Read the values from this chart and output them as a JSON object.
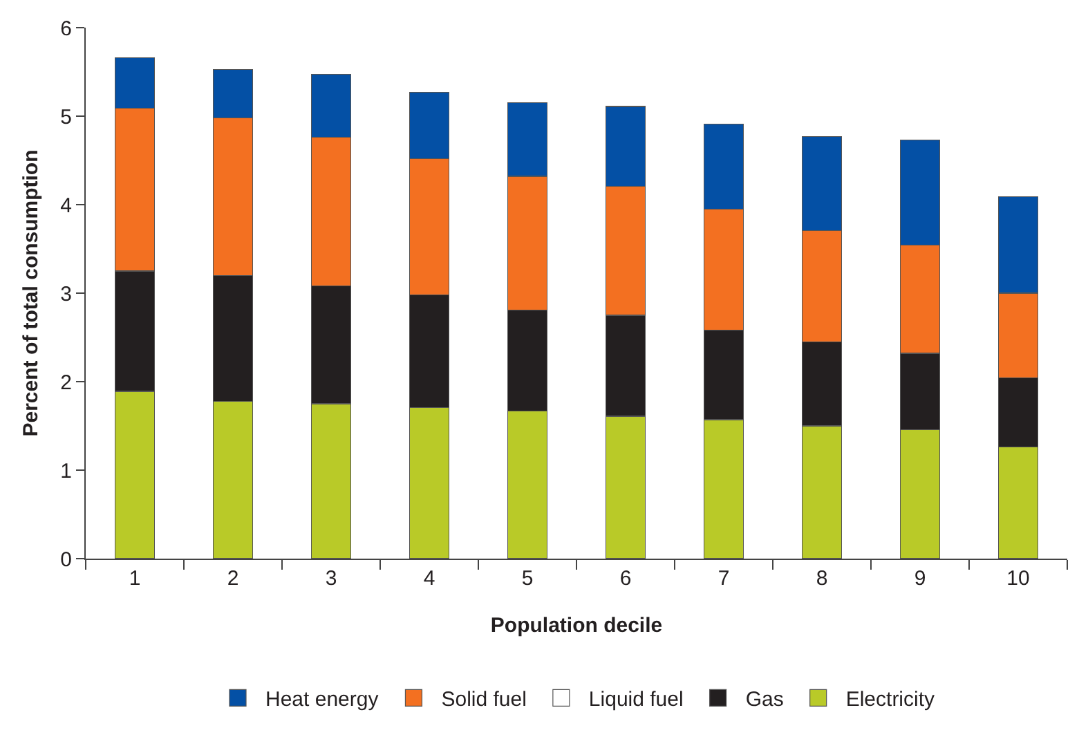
{
  "chart_data": {
    "type": "bar",
    "stacked": true,
    "xlabel": "Population decile",
    "ylabel": "Percent of total consumption",
    "categories": [
      "1",
      "2",
      "3",
      "4",
      "5",
      "6",
      "7",
      "8",
      "9",
      "10"
    ],
    "series": [
      {
        "name": "Electricity",
        "color": "#b9ca28",
        "values": [
          1.89,
          1.78,
          1.75,
          1.71,
          1.67,
          1.61,
          1.57,
          1.5,
          1.46,
          1.26
        ]
      },
      {
        "name": "Gas",
        "color": "#231f20",
        "values": [
          1.36,
          1.42,
          1.33,
          1.27,
          1.14,
          1.14,
          1.01,
          0.95,
          0.86,
          0.78
        ]
      },
      {
        "name": "Liquid fuel",
        "color": "#ffffff",
        "values": [
          0,
          0,
          0,
          0,
          0,
          0,
          0,
          0,
          0,
          0
        ]
      },
      {
        "name": "Solid fuel",
        "color": "#f37021",
        "values": [
          1.84,
          1.78,
          1.68,
          1.54,
          1.51,
          1.46,
          1.37,
          1.26,
          1.22,
          0.96
        ]
      },
      {
        "name": "Heat energy",
        "color": "#0450a5",
        "values": [
          0.57,
          0.55,
          0.71,
          0.75,
          0.83,
          0.9,
          0.96,
          1.06,
          1.19,
          1.09
        ]
      }
    ],
    "ylim": [
      0,
      6
    ],
    "yticks": [
      0,
      1,
      2,
      3,
      4,
      5,
      6
    ],
    "grid": false,
    "legend": "bottom"
  }
}
